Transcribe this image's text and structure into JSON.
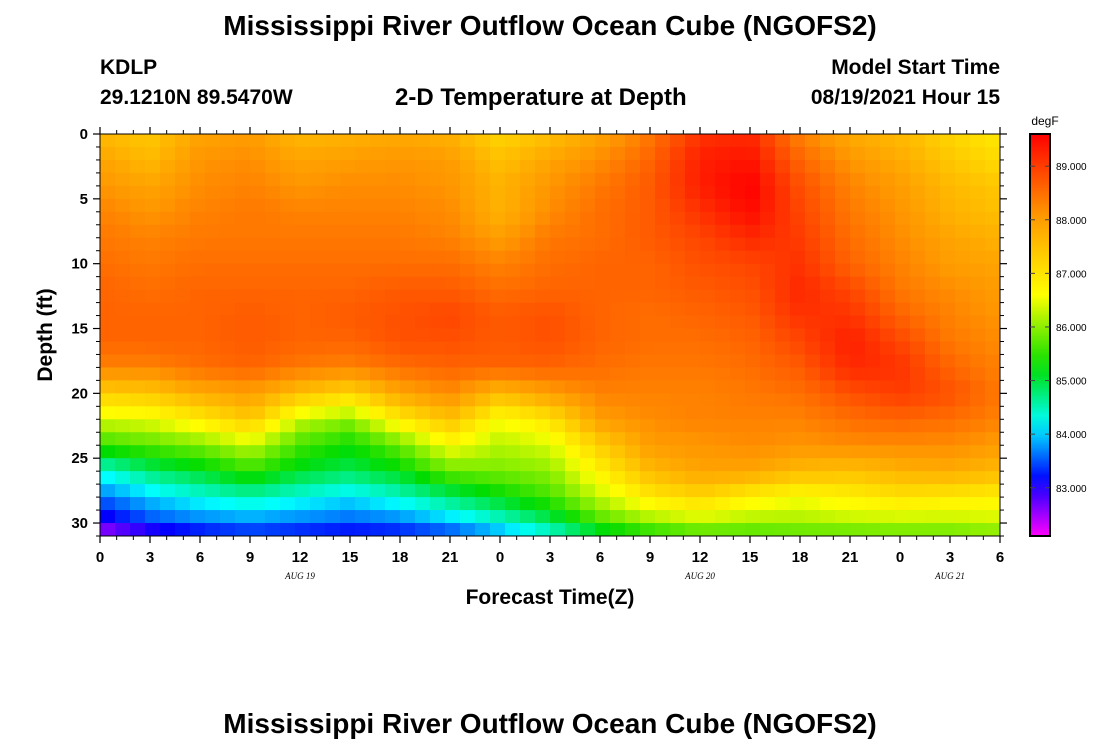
{
  "header": {
    "title": "Mississippi River Outflow Ocean Cube (NGOFS2)",
    "station_id": "KDLP",
    "coordinates": "29.1210N  89.5470W",
    "subtitle": "2-D Temperature at Depth",
    "model_start_label": "Model Start Time",
    "model_start_value": "08/19/2021 Hour 15"
  },
  "footer": {
    "title": "Mississippi River Outflow Ocean Cube (NGOFS2)"
  },
  "chart_data": {
    "type": "heatmap",
    "title": "2-D Temperature at Depth",
    "xlabel": "Forecast Time(Z)",
    "ylabel": "Depth (ft)",
    "x_unit": "hours from 00Z Aug 19",
    "xlim": [
      0,
      54
    ],
    "ylim": [
      31,
      0
    ],
    "x_ticks": [
      0,
      3,
      6,
      9,
      12,
      15,
      18,
      21,
      24,
      27,
      30,
      33,
      36,
      39,
      42,
      45,
      48,
      51,
      54
    ],
    "x_tick_labels": [
      "0",
      "3",
      "6",
      "9",
      "12",
      "15",
      "18",
      "21",
      "0",
      "3",
      "6",
      "9",
      "12",
      "15",
      "18",
      "21",
      "0",
      "3",
      "6"
    ],
    "y_ticks": [
      0,
      5,
      10,
      15,
      20,
      25,
      30
    ],
    "y_tick_labels": [
      "0",
      "5",
      "10",
      "15",
      "20",
      "25",
      "30"
    ],
    "date_labels": [
      {
        "label": "AUG 19",
        "x": 12
      },
      {
        "label": "AUG 20",
        "x": 36
      },
      {
        "label": "AUG 21",
        "x": 51
      }
    ],
    "colorbar": {
      "unit": "degF",
      "min": 82.1,
      "max": 89.6,
      "ticks": [
        83.0,
        84.0,
        85.0,
        86.0,
        87.0,
        88.0,
        89.0
      ],
      "tick_labels": [
        "83.000",
        "84.000",
        "85.000",
        "86.000",
        "87.000",
        "88.000",
        "89.000"
      ]
    },
    "time_hours": [
      0,
      3,
      6,
      9,
      12,
      15,
      18,
      21,
      24,
      27,
      30,
      33,
      36,
      39,
      42,
      45,
      48,
      51,
      54
    ],
    "depth_ft": [
      0,
      2,
      4,
      6,
      8,
      10,
      12,
      14,
      16,
      18,
      20,
      22,
      24,
      26,
      28,
      30,
      31
    ],
    "values": [
      [
        87.6,
        87.4,
        87.9,
        88.0,
        87.6,
        87.7,
        87.8,
        87.7,
        87.2,
        87.5,
        87.9,
        88.4,
        89.1,
        89.2,
        88.3,
        87.8,
        87.6,
        87.2,
        86.9
      ],
      [
        87.9,
        87.6,
        88.1,
        88.2,
        87.9,
        88.0,
        88.1,
        88.0,
        87.5,
        87.9,
        88.2,
        88.6,
        89.3,
        89.4,
        88.6,
        88.1,
        87.8,
        87.4,
        87.1
      ],
      [
        88.1,
        87.9,
        88.2,
        88.3,
        88.1,
        88.2,
        88.2,
        88.1,
        87.7,
        88.1,
        88.4,
        88.7,
        89.3,
        89.6,
        88.8,
        88.3,
        88.0,
        87.6,
        87.4
      ],
      [
        88.3,
        88.1,
        88.3,
        88.4,
        88.3,
        88.3,
        88.3,
        88.2,
        87.7,
        88.2,
        88.5,
        88.7,
        89.1,
        89.5,
        88.9,
        88.4,
        88.1,
        87.7,
        87.5
      ],
      [
        88.4,
        88.3,
        88.4,
        88.4,
        88.4,
        88.4,
        88.4,
        88.3,
        88.0,
        88.4,
        88.5,
        88.7,
        88.9,
        89.2,
        89.0,
        88.5,
        88.2,
        87.9,
        87.7
      ],
      [
        88.5,
        88.4,
        88.5,
        88.5,
        88.5,
        88.5,
        88.5,
        88.5,
        88.3,
        88.5,
        88.6,
        88.6,
        88.8,
        88.9,
        89.1,
        88.6,
        88.3,
        88.0,
        87.9
      ],
      [
        88.6,
        88.5,
        88.6,
        88.6,
        88.6,
        88.6,
        88.7,
        88.7,
        88.5,
        88.6,
        88.6,
        88.6,
        88.7,
        88.8,
        89.2,
        88.9,
        88.4,
        88.2,
        88.0
      ],
      [
        88.6,
        88.6,
        88.6,
        88.7,
        88.6,
        88.7,
        88.8,
        88.9,
        88.7,
        88.8,
        88.6,
        88.5,
        88.6,
        88.7,
        89.1,
        89.1,
        88.6,
        88.3,
        88.1
      ],
      [
        88.6,
        88.6,
        88.6,
        88.7,
        88.6,
        88.6,
        88.8,
        88.8,
        88.7,
        88.8,
        88.6,
        88.5,
        88.5,
        88.6,
        88.9,
        89.3,
        88.9,
        88.4,
        88.2
      ],
      [
        88.3,
        88.3,
        88.5,
        88.6,
        88.4,
        88.3,
        88.5,
        88.6,
        88.6,
        88.6,
        88.5,
        88.4,
        88.4,
        88.5,
        88.7,
        89.2,
        89.1,
        88.6,
        88.3
      ],
      [
        87.3,
        87.4,
        87.8,
        88.0,
        87.5,
        87.2,
        87.9,
        88.2,
        87.6,
        88.0,
        88.3,
        88.3,
        88.3,
        88.4,
        88.5,
        88.8,
        89.0,
        88.8,
        88.4
      ],
      [
        86.4,
        86.5,
        86.9,
        87.4,
        86.3,
        86.0,
        86.9,
        87.5,
        86.6,
        87.0,
        88.0,
        88.2,
        88.3,
        88.3,
        88.3,
        88.5,
        88.6,
        88.5,
        88.3
      ],
      [
        85.5,
        85.7,
        85.9,
        86.3,
        85.6,
        85.3,
        85.8,
        86.6,
        86.2,
        86.4,
        87.3,
        88.0,
        88.1,
        88.2,
        88.1,
        88.2,
        88.2,
        88.2,
        88.0
      ],
      [
        84.3,
        84.8,
        85.1,
        85.5,
        85.1,
        84.9,
        85.2,
        85.8,
        85.9,
        86.0,
        86.8,
        87.6,
        87.9,
        87.9,
        87.6,
        87.5,
        87.7,
        87.8,
        87.6
      ],
      [
        83.6,
        84.0,
        84.3,
        84.5,
        84.3,
        84.1,
        84.4,
        84.8,
        85.2,
        85.6,
        86.3,
        86.9,
        87.2,
        86.8,
        86.6,
        86.8,
        87.0,
        86.9,
        86.8
      ],
      [
        82.9,
        83.4,
        83.6,
        83.7,
        83.6,
        83.5,
        83.6,
        83.9,
        84.3,
        84.8,
        85.6,
        86.0,
        86.2,
        86.1,
        86.1,
        86.2,
        86.2,
        86.2,
        86.3
      ],
      [
        82.3,
        82.7,
        83.0,
        83.2,
        83.1,
        83.0,
        83.1,
        83.3,
        83.7,
        84.2,
        84.8,
        85.2,
        85.5,
        85.5,
        85.6,
        85.6,
        85.7,
        85.7,
        85.8
      ]
    ]
  }
}
